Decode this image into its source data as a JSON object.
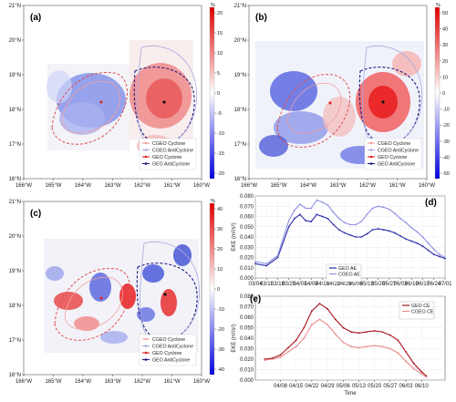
{
  "maps": [
    {
      "id": "a",
      "panel_label": "(a)",
      "xticks": [
        "166°W",
        "165°W",
        "164°W",
        "163°W",
        "162°W",
        "161°W",
        "160°W"
      ],
      "yticks": [
        "16°N",
        "17°N",
        "18°N",
        "19°N",
        "20°N",
        "21°N"
      ],
      "colorbar": {
        "unit": "%",
        "ticks": [
          "20",
          "15",
          "10",
          "5",
          "0",
          "-5",
          "-10",
          "-15",
          "-20"
        ],
        "min": -20,
        "max": 20
      },
      "legend": [
        "CGEO Cyclone",
        "CGEO AntiCyclone",
        "GEO Cyclone",
        "GEO AntiCyclone"
      ]
    },
    {
      "id": "b",
      "panel_label": "(b)",
      "xticks": [
        "166°W",
        "165°W",
        "164°W",
        "163°W",
        "162°W",
        "161°W",
        "160°W"
      ],
      "yticks": [
        "16°N",
        "17°N",
        "18°N",
        "19°N",
        "20°N",
        "21°N"
      ],
      "colorbar": {
        "unit": "%",
        "ticks": [
          "50",
          "40",
          "30",
          "20",
          "10",
          "0",
          "-10",
          "-20",
          "-30",
          "-40",
          "-50"
        ],
        "min": -50,
        "max": 50
      },
      "legend": [
        "CGEO Cyclone",
        "CGEO AntiCyclone",
        "GEO Cyclone",
        "GEO AntiCyclone"
      ]
    },
    {
      "id": "c",
      "panel_label": "(c)",
      "xticks": [
        "166°W",
        "165°W",
        "164°W",
        "163°W",
        "162°W",
        "161°W",
        "160°W"
      ],
      "yticks": [
        "16°N",
        "17°N",
        "18°N",
        "19°N",
        "20°N",
        "21°N"
      ],
      "colorbar": {
        "unit": "%",
        "ticks": [
          "40",
          "30",
          "20",
          "10",
          "0",
          "-10",
          "-20",
          "-30",
          "-40"
        ],
        "min": -40,
        "max": 40
      },
      "legend": [
        "CGEO Cyclone",
        "CGEO AntiCyclone",
        "GEO Cyclone",
        "GEO AntiCyclone"
      ]
    }
  ],
  "chart_data": [
    {
      "id": "d",
      "type": "line",
      "panel_label": "(d)",
      "ylabel": "EKE (m²/s²)",
      "xlabel": "",
      "ylim": [
        0,
        0.08
      ],
      "yticks": [
        "0.000",
        "0.010",
        "0.020",
        "0.030",
        "0.040",
        "0.050",
        "0.060",
        "0.070",
        "0.080"
      ],
      "xticks": [
        "03/04",
        "03/11",
        "03/18",
        "03/25",
        "04/01",
        "04/08",
        "04/15",
        "04/22",
        "04/29",
        "05/06",
        "05/13",
        "05/20",
        "05/27",
        "06/03",
        "06/10",
        "06/17",
        "06/24",
        "07/01"
      ],
      "series": [
        {
          "name": "GEO AE",
          "color": "#2a2aa8",
          "x": [
            0,
            1,
            2,
            3,
            3.5,
            4,
            4.5,
            5,
            5.5,
            6,
            6.5,
            7,
            7.5,
            8,
            8.5,
            9,
            9.5,
            10,
            10.5,
            11,
            11.5,
            12,
            12.5,
            13,
            13.5,
            14,
            14.5,
            15,
            15.5,
            16,
            16.5,
            17
          ],
          "values": [
            0.014,
            0.012,
            0.02,
            0.05,
            0.058,
            0.062,
            0.056,
            0.055,
            0.062,
            0.06,
            0.058,
            0.052,
            0.047,
            0.044,
            0.042,
            0.04,
            0.04,
            0.043,
            0.047,
            0.048,
            0.047,
            0.046,
            0.044,
            0.041,
            0.038,
            0.036,
            0.034,
            0.031,
            0.027,
            0.023,
            0.021,
            0.019
          ]
        },
        {
          "name": "CGEO AE",
          "color": "#8f8fe6",
          "x": [
            0,
            1,
            2,
            3,
            3.5,
            4,
            4.5,
            5,
            5.5,
            6,
            6.5,
            7,
            7.5,
            8,
            8.5,
            9,
            9.5,
            10,
            10.5,
            11,
            11.5,
            12,
            12.5,
            13,
            13.5,
            14,
            14.5,
            15,
            15.5,
            16,
            16.5,
            17
          ],
          "values": [
            0.016,
            0.014,
            0.022,
            0.056,
            0.066,
            0.072,
            0.068,
            0.068,
            0.076,
            0.074,
            0.071,
            0.064,
            0.058,
            0.054,
            0.052,
            0.052,
            0.055,
            0.062,
            0.068,
            0.07,
            0.069,
            0.067,
            0.063,
            0.058,
            0.054,
            0.049,
            0.045,
            0.04,
            0.034,
            0.028,
            0.023,
            0.02
          ]
        }
      ]
    },
    {
      "id": "e",
      "type": "line",
      "panel_label": "(e)",
      "ylabel": "EKE (m²/s²)",
      "xlabel": "Time",
      "ylim": [
        0,
        0.08
      ],
      "yticks": [
        "0.000",
        "0.010",
        "0.020",
        "0.030",
        "0.040",
        "0.050",
        "0.060",
        "0.070",
        "0.080"
      ],
      "xticks": [
        "04/08",
        "04/15",
        "04/22",
        "04/29",
        "05/06",
        "05/13",
        "05/20",
        "05/27",
        "06/03",
        "06/10"
      ],
      "series": [
        {
          "name": "GEO CE",
          "color": "#a8141e",
          "x": [
            -1,
            -0.5,
            0,
            0.5,
            1,
            1.5,
            2,
            2.5,
            3,
            3.5,
            4,
            4.5,
            5,
            5.5,
            6,
            6.5,
            7,
            7.5,
            8,
            8.5,
            9,
            9.3
          ],
          "values": [
            0.02,
            0.021,
            0.024,
            0.031,
            0.038,
            0.05,
            0.066,
            0.073,
            0.068,
            0.058,
            0.05,
            0.046,
            0.045,
            0.046,
            0.047,
            0.046,
            0.043,
            0.038,
            0.027,
            0.016,
            0.008,
            0.004
          ]
        },
        {
          "name": "CGEO CE",
          "color": "#e88a8a",
          "x": [
            -1,
            -0.5,
            0,
            0.5,
            1,
            1.5,
            2,
            2.5,
            3,
            3.5,
            4,
            4.5,
            5,
            5.5,
            6,
            6.5,
            7,
            7.5,
            8,
            8.5,
            9,
            9.3
          ],
          "values": [
            0.019,
            0.02,
            0.022,
            0.027,
            0.032,
            0.04,
            0.053,
            0.058,
            0.053,
            0.044,
            0.036,
            0.032,
            0.031,
            0.032,
            0.033,
            0.032,
            0.03,
            0.026,
            0.018,
            0.011,
            0.006,
            0.003
          ]
        }
      ]
    }
  ]
}
